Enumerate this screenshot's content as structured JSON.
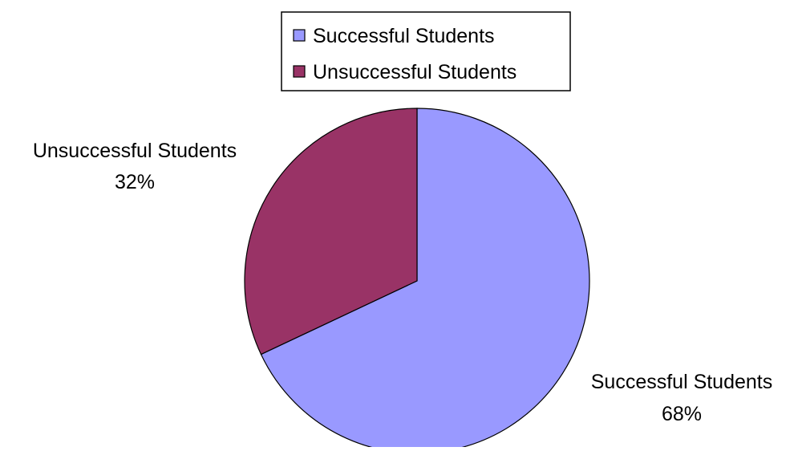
{
  "chart_data": {
    "type": "pie",
    "categories": [
      "Successful Students",
      "Unsuccessful Students"
    ],
    "values": [
      68,
      32
    ],
    "value_labels": [
      "68%",
      "32%"
    ],
    "colors": [
      "#9999ff",
      "#993366"
    ],
    "legend": {
      "placement": "top-center",
      "entries": [
        "Successful Students",
        "Unsuccessful Students"
      ]
    },
    "title": "",
    "data_labels_shown": true
  }
}
